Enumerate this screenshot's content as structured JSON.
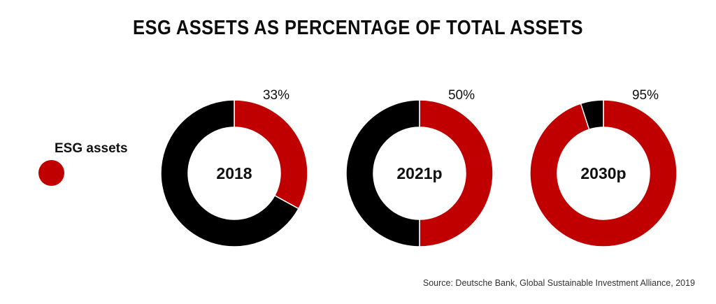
{
  "chart_data": {
    "type": "pie",
    "title": "ESG ASSETS AS PERCENTAGE OF TOTAL ASSETS",
    "legend": {
      "label": "ESG assets",
      "color": "#c00000",
      "placement": "left"
    },
    "colors": {
      "esg": "#c00000",
      "other": "#000000"
    },
    "donuts": [
      {
        "center_label": "2018",
        "value": 33,
        "value_label": "33%"
      },
      {
        "center_label": "2021p",
        "value": 50,
        "value_label": "50%"
      },
      {
        "center_label": "2030p",
        "value": 95,
        "value_label": "95%"
      }
    ],
    "source": "Source: Deutsche Bank, Global Sustainable Investment Alliance, 2019"
  }
}
